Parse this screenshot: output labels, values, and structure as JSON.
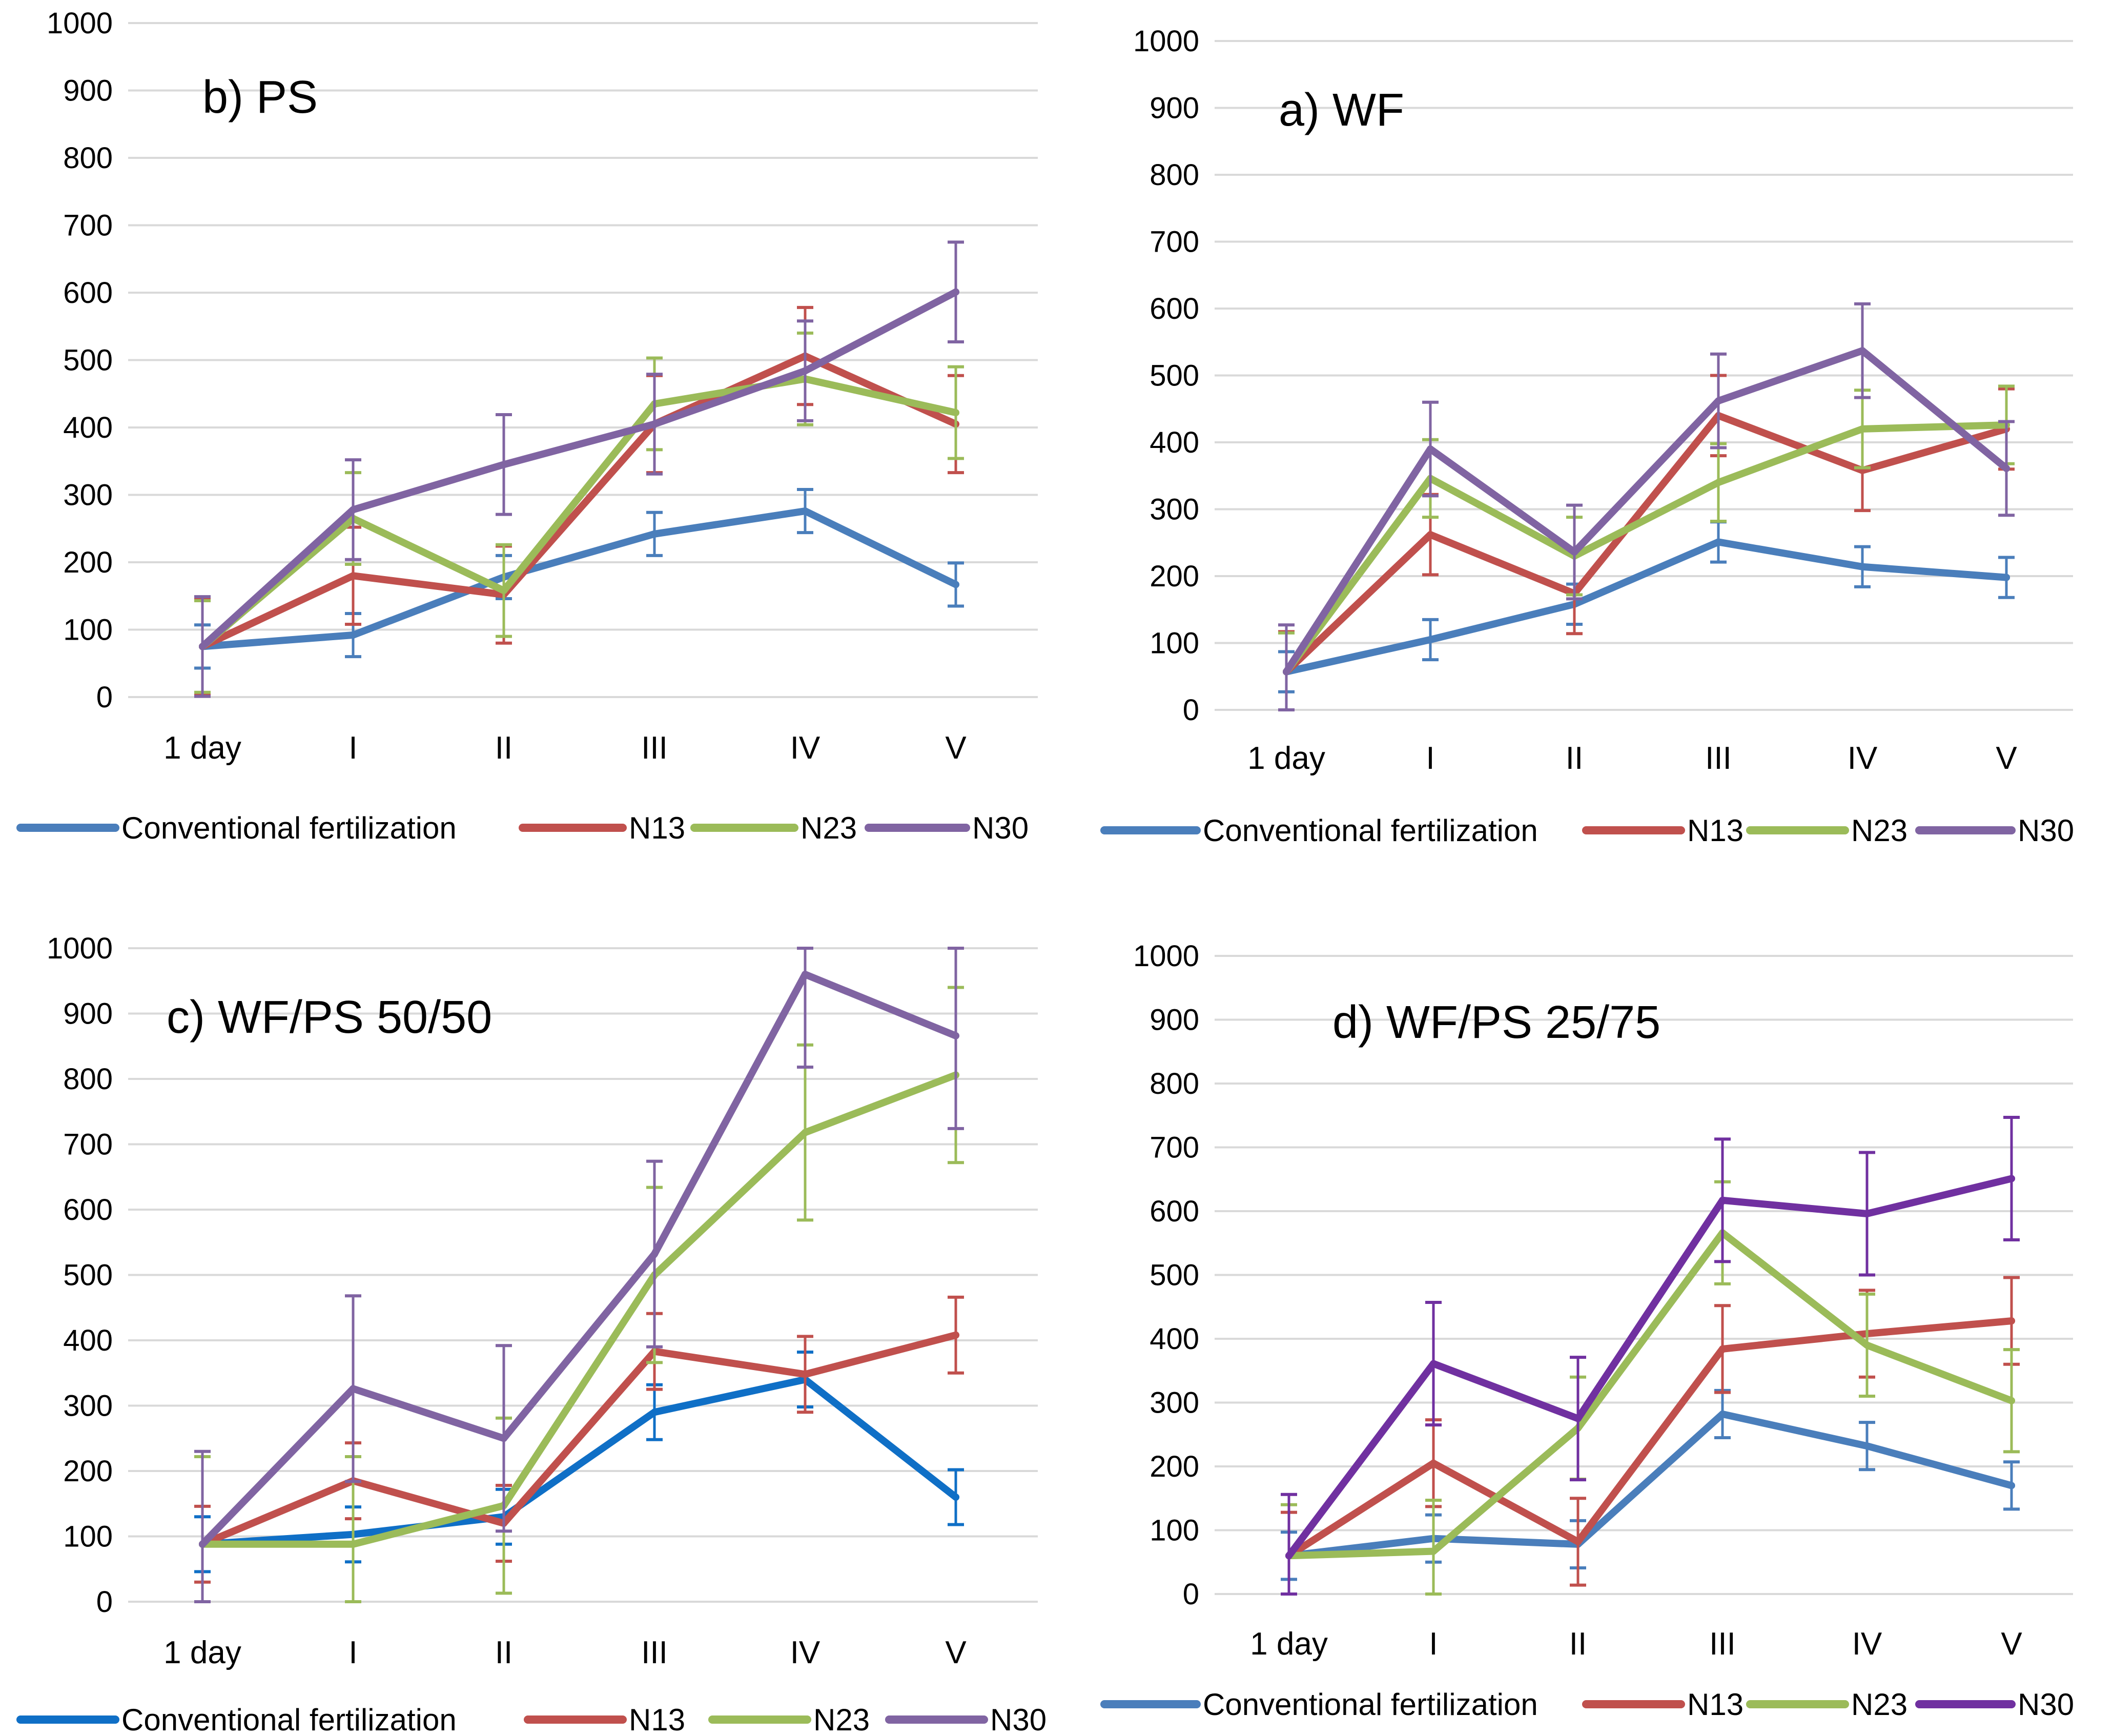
{
  "figure": {
    "colors": {
      "conventional": "#4a7ebb",
      "conventional_alt": "#0f6fc6",
      "n13": "#c0504d",
      "n23": "#9bbb59",
      "n30": "#8064a2",
      "n30_alt": "#7030a0",
      "grid": "#d9d9d9"
    }
  },
  "chart_data": [
    {
      "id": "ps",
      "type": "line",
      "title": "b) PS",
      "categories": [
        "1 day",
        "I",
        "II",
        "III",
        "IV",
        "V"
      ],
      "yticks": [
        "0",
        "100",
        "200",
        "300",
        "400",
        "500",
        "600",
        "700",
        "800",
        "900",
        "1000"
      ],
      "ylim": [
        0,
        1000
      ],
      "legend_position": "bottom",
      "series": [
        {
          "name": "Conventional fertilization",
          "color": "#4a7ebb",
          "values": [
            75,
            92,
            178,
            242,
            276,
            167
          ],
          "errors": [
            32,
            32,
            32,
            32,
            32,
            32
          ]
        },
        {
          "name": "N13",
          "color": "#c0504d",
          "values": [
            75,
            180,
            152,
            405,
            506,
            405
          ],
          "errors": [
            72,
            72,
            72,
            72,
            72,
            72
          ]
        },
        {
          "name": "N23",
          "color": "#9bbb59",
          "values": [
            75,
            265,
            158,
            435,
            472,
            422
          ],
          "errors": [
            68,
            68,
            68,
            68,
            68,
            68
          ]
        },
        {
          "name": "N30",
          "color": "#8064a2",
          "values": [
            75,
            278,
            345,
            405,
            484,
            601
          ],
          "errors": [
            74,
            74,
            74,
            74,
            74,
            74
          ]
        }
      ]
    },
    {
      "id": "wf",
      "type": "line",
      "title": "a) WF",
      "categories": [
        "1 day",
        "I",
        "II",
        "III",
        "IV",
        "V"
      ],
      "yticks": [
        "0",
        "100",
        "200",
        "300",
        "400",
        "500",
        "600",
        "700",
        "800",
        "900",
        "1000"
      ],
      "ylim": [
        0,
        1000
      ],
      "legend_position": "bottom",
      "series": [
        {
          "name": "Conventional fertilization",
          "color": "#4a7ebb",
          "values": [
            57,
            105,
            158,
            251,
            214,
            198
          ],
          "errors": [
            30,
            30,
            30,
            30,
            30,
            30
          ]
        },
        {
          "name": "N13",
          "color": "#c0504d",
          "values": [
            57,
            262,
            174,
            440,
            358,
            420
          ],
          "errors": [
            60,
            60,
            60,
            60,
            60,
            60
          ]
        },
        {
          "name": "N23",
          "color": "#9bbb59",
          "values": [
            57,
            346,
            230,
            340,
            420,
            426
          ],
          "errors": [
            58,
            58,
            58,
            58,
            58,
            58
          ]
        },
        {
          "name": "N30",
          "color": "#8064a2",
          "values": [
            57,
            390,
            236,
            462,
            537,
            361
          ],
          "errors": [
            70,
            70,
            70,
            70,
            70,
            70
          ]
        }
      ]
    },
    {
      "id": "wfps5050",
      "type": "line",
      "title": "c) WF/PS 50/50",
      "categories": [
        "1 day",
        "I",
        "II",
        "III",
        "IV",
        "V"
      ],
      "yticks": [
        "0",
        "100",
        "200",
        "300",
        "400",
        "500",
        "600",
        "700",
        "800",
        "900",
        "1000"
      ],
      "ylim": [
        0,
        1000
      ],
      "legend_position": "bottom",
      "series": [
        {
          "name": "Conventional fertilization",
          "color": "#0f6fc6",
          "values": [
            88,
            103,
            130,
            290,
            340,
            160
          ],
          "errors": [
            42,
            42,
            42,
            42,
            42,
            42
          ]
        },
        {
          "name": "N13",
          "color": "#c0504d",
          "values": [
            88,
            185,
            120,
            383,
            348,
            408
          ],
          "errors": [
            58,
            58,
            58,
            58,
            58,
            58
          ]
        },
        {
          "name": "N23",
          "color": "#9bbb59",
          "values": [
            88,
            88,
            147,
            500,
            718,
            806
          ],
          "errors": [
            134,
            134,
            134,
            134,
            134,
            134
          ]
        },
        {
          "name": "N30",
          "color": "#8064a2",
          "values": [
            88,
            326,
            250,
            532,
            960,
            866
          ],
          "errors": [
            142,
            142,
            142,
            142,
            142,
            142
          ]
        }
      ]
    },
    {
      "id": "wfps2575",
      "type": "line",
      "title": "d) WF/PS 25/75",
      "categories": [
        "1 day",
        "I",
        "II",
        "III",
        "IV",
        "V"
      ],
      "yticks": [
        "0",
        "100",
        "200",
        "300",
        "400",
        "500",
        "600",
        "700",
        "800",
        "900",
        "1000"
      ],
      "ylim": [
        0,
        1000
      ],
      "legend_position": "bottom",
      "series": [
        {
          "name": "Conventional fertilization",
          "color": "#4a7ebb",
          "values": [
            60,
            87,
            78,
            282,
            232,
            170
          ],
          "errors": [
            37,
            37,
            37,
            37,
            37,
            37
          ]
        },
        {
          "name": "N13",
          "color": "#c0504d",
          "values": [
            60,
            205,
            82,
            384,
            408,
            428
          ],
          "errors": [
            68,
            68,
            68,
            68,
            68,
            68
          ]
        },
        {
          "name": "N23",
          "color": "#9bbb59",
          "values": [
            60,
            67,
            260,
            566,
            390,
            303
          ],
          "errors": [
            80,
            80,
            80,
            80,
            80,
            80
          ]
        },
        {
          "name": "N30",
          "color": "#7030a0",
          "values": [
            60,
            361,
            275,
            617,
            596,
            651
          ],
          "errors": [
            96,
            96,
            96,
            96,
            96,
            96
          ]
        }
      ]
    }
  ]
}
